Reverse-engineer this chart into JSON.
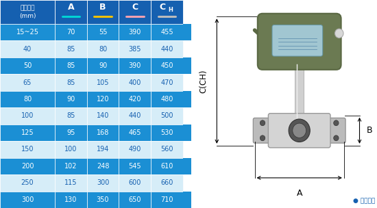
{
  "header_col0": "仪表口径\n(mm)",
  "header_cols": [
    "A",
    "B",
    "C",
    "CH"
  ],
  "header_underline_colors": [
    "#00d4d4",
    "#f0c000",
    "#f0a0b0",
    "#bbbbbb"
  ],
  "rows": [
    [
      "15~25",
      "70",
      "55",
      "390",
      "455"
    ],
    [
      "40",
      "85",
      "80",
      "385",
      "440"
    ],
    [
      "50",
      "85",
      "90",
      "390",
      "450"
    ],
    [
      "65",
      "85",
      "105",
      "400",
      "470"
    ],
    [
      "80",
      "90",
      "120",
      "420",
      "480"
    ],
    [
      "100",
      "85",
      "140",
      "440",
      "500"
    ],
    [
      "125",
      "95",
      "168",
      "465",
      "530"
    ],
    [
      "150",
      "100",
      "194",
      "490",
      "560"
    ],
    [
      "200",
      "102",
      "248",
      "545",
      "610"
    ],
    [
      "250",
      "115",
      "300",
      "600",
      "660"
    ],
    [
      "300",
      "130",
      "350",
      "650",
      "710"
    ]
  ],
  "row_bg_dark": "#1b8fd4",
  "row_bg_light": "#d6edf8",
  "text_dark": "#ffffff",
  "text_light": "#1560b0",
  "header_bg": "#1560b0",
  "header_text": "#ffffff",
  "col0_bg_dark": "#1b8fd4",
  "col0_bg_light": "#d6edf8",
  "note_text": "● 常规仪表",
  "note_color": "#1560b0",
  "label_C": "C(CH)",
  "label_A": "A",
  "label_B": "B",
  "border_color": "#5ab0e0",
  "fig_bg": "#ffffff"
}
